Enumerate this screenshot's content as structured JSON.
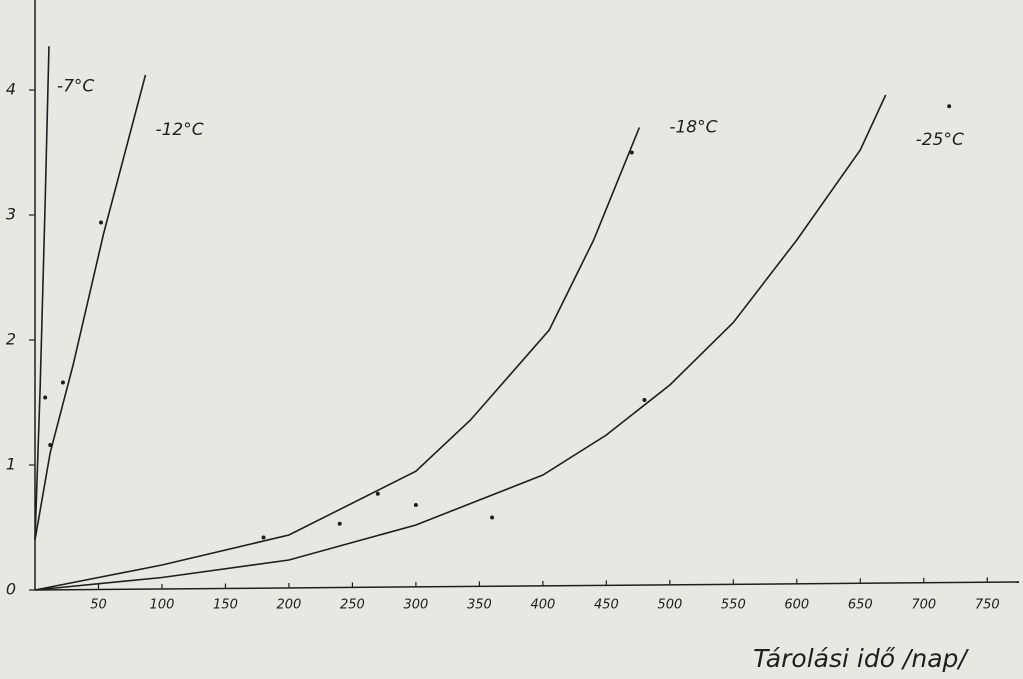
{
  "chart_data": {
    "type": "line",
    "x_label": "Tárolási idő /nap/",
    "xlim": [
      0,
      775
    ],
    "ylim": [
      0,
      4.72
    ],
    "xticks": [
      50,
      100,
      150,
      200,
      250,
      300,
      350,
      400,
      450,
      500,
      550,
      600,
      650,
      700,
      750
    ],
    "yticks": [
      0,
      1,
      2,
      3,
      4
    ],
    "color": "#1e1e1e",
    "series": [
      {
        "name": "-7°C",
        "x": [
          0,
          4,
          8,
          11
        ],
        "values": [
          0.4,
          1.6,
          3.1,
          4.35
        ]
      },
      {
        "name": "-12°C",
        "x": [
          0,
          12,
          30,
          54,
          87
        ],
        "values": [
          0.4,
          1.1,
          1.8,
          2.85,
          4.12
        ]
      },
      {
        "name": "-18°C",
        "x": [
          0,
          100,
          200,
          300,
          343,
          405,
          440,
          476
        ],
        "values": [
          0,
          0.2,
          0.44,
          0.95,
          1.36,
          2.08,
          2.8,
          3.7
        ]
      },
      {
        "name": "-25°C",
        "x": [
          0,
          100,
          200,
          300,
          400,
          450,
          500,
          550,
          600,
          650,
          670
        ],
        "values": [
          0,
          0.1,
          0.24,
          0.52,
          0.92,
          1.24,
          1.64,
          2.14,
          2.8,
          3.52,
          3.96
        ]
      }
    ],
    "points": {
      "x": [
        52,
        22,
        12,
        8,
        180,
        240,
        270,
        300,
        360,
        480,
        470,
        720
      ],
      "values": [
        2.94,
        1.66,
        1.16,
        1.54,
        0.42,
        0.53,
        0.77,
        0.68,
        0.58,
        1.52,
        3.5,
        3.87
      ]
    }
  }
}
